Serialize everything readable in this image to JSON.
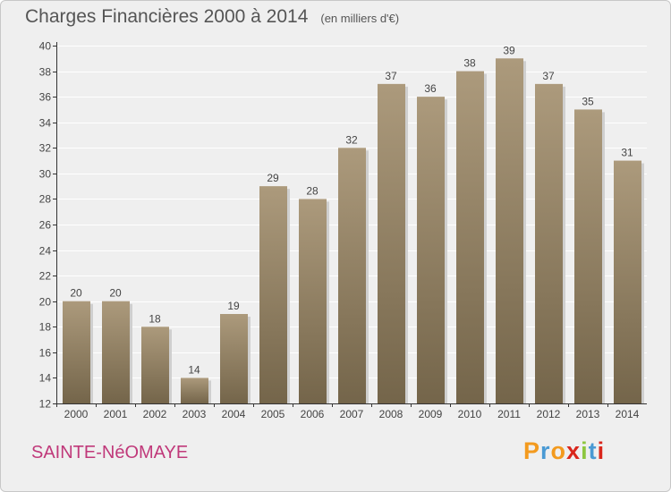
{
  "header": {
    "title": "Charges Financières 2000 à 2014",
    "subtitle": "(en milliers d'€)"
  },
  "footer": {
    "commune": "SAINTE-NéOMAYE",
    "logo": {
      "letters": [
        "P",
        "r",
        "o",
        "x",
        "i",
        "t",
        "i"
      ],
      "colors": [
        "#f39a1e",
        "#4a9ad4",
        "#f39a1e",
        "#d9261c",
        "#8dc63f",
        "#4a9ad4",
        "#d9261c"
      ]
    }
  },
  "colors": {
    "bar_top": "#ac9a7c",
    "bar_bottom": "#74654a",
    "gridline": "#ffffff",
    "axis": "#333333",
    "text": "#444444",
    "plot_background": "#efefef"
  },
  "chart_data": {
    "type": "bar",
    "title": "Charges Financières 2000 à 2014",
    "subtitle": "(en milliers d'€)",
    "categories": [
      "2000",
      "2001",
      "2002",
      "2003",
      "2004",
      "2005",
      "2006",
      "2007",
      "2008",
      "2009",
      "2010",
      "2011",
      "2012",
      "2013",
      "2014"
    ],
    "values": [
      20,
      20,
      18,
      14,
      19,
      29,
      28,
      32,
      37,
      36,
      38,
      39,
      37,
      35,
      31
    ],
    "data_labels": [
      "20",
      "20",
      "18",
      "14",
      "19",
      "29",
      "28",
      "32",
      "37",
      "36",
      "38",
      "39",
      "37",
      "35",
      "31"
    ],
    "ylim": [
      12,
      40
    ],
    "yticks": [
      12,
      14,
      16,
      18,
      20,
      22,
      24,
      26,
      28,
      30,
      32,
      34,
      36,
      38,
      40
    ],
    "grid": true
  }
}
